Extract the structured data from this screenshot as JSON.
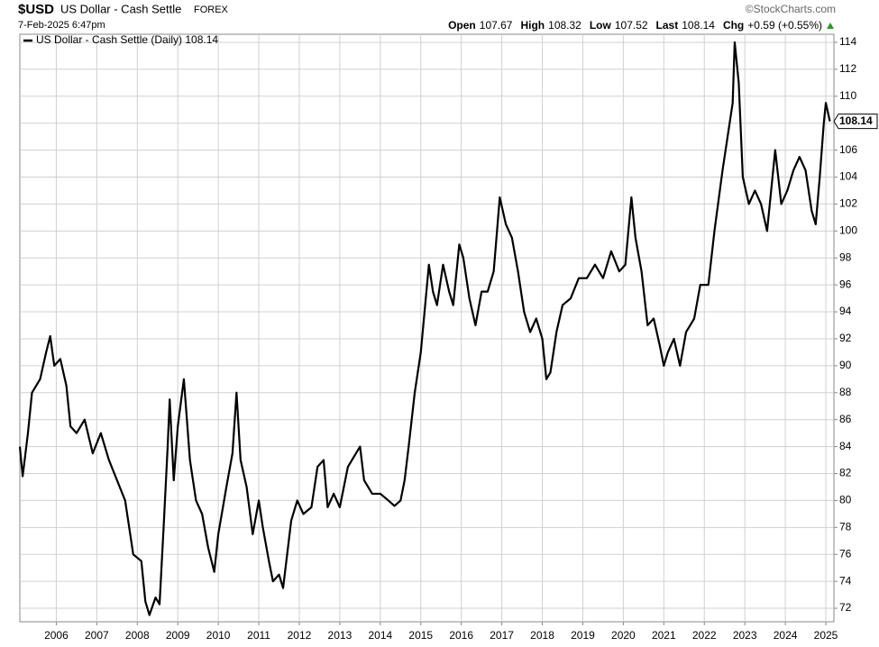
{
  "chart_data": {
    "type": "line",
    "title": "$USD",
    "subtitle": "US Dollar - Cash Settle",
    "exchange": "FOREX",
    "date": "7-Feb-2025 6:47pm",
    "source": "©StockCharts.com",
    "quote": [
      {
        "label": "Open",
        "value": 107.67
      },
      {
        "label": "High",
        "value": 108.32
      },
      {
        "label": "Low",
        "value": 107.52
      },
      {
        "label": "Last",
        "value": 108.14
      },
      {
        "label": "Chg",
        "value": "+0.59 (+0.55%)"
      }
    ],
    "grid": true,
    "legend": "top-left",
    "xlim": [
      2005.1,
      2025.2
    ],
    "xticks": [
      2006,
      2007,
      2008,
      2009,
      2010,
      2011,
      2012,
      2013,
      2014,
      2015,
      2016,
      2017,
      2018,
      2019,
      2020,
      2021,
      2022,
      2023,
      2024,
      2025
    ],
    "ylim": [
      71,
      114.6
    ],
    "yticks": [
      72,
      74,
      76,
      78,
      80,
      82,
      84,
      86,
      88,
      90,
      92,
      94,
      96,
      98,
      100,
      102,
      104,
      106,
      108,
      110,
      112,
      114
    ],
    "series": [
      {
        "name": "US Dollar - Cash Settle (Daily) 108.14",
        "color": "#000000",
        "x": [
          2005.1,
          2005.17,
          2005.3,
          2005.4,
          2005.6,
          2005.75,
          2005.85,
          2005.95,
          2006.1,
          2006.25,
          2006.35,
          2006.5,
          2006.7,
          2006.9,
          2007.1,
          2007.3,
          2007.5,
          2007.7,
          2007.9,
          2008.1,
          2008.2,
          2008.3,
          2008.45,
          2008.55,
          2008.65,
          2008.75,
          2008.8,
          2008.9,
          2009.0,
          2009.15,
          2009.3,
          2009.45,
          2009.6,
          2009.75,
          2009.9,
          2010.0,
          2010.2,
          2010.35,
          2010.45,
          2010.55,
          2010.7,
          2010.85,
          2011.0,
          2011.1,
          2011.25,
          2011.35,
          2011.5,
          2011.6,
          2011.7,
          2011.8,
          2011.95,
          2012.1,
          2012.3,
          2012.45,
          2012.6,
          2012.7,
          2012.85,
          2013.0,
          2013.2,
          2013.4,
          2013.5,
          2013.6,
          2013.8,
          2014.0,
          2014.2,
          2014.35,
          2014.5,
          2014.6,
          2014.7,
          2014.85,
          2015.0,
          2015.2,
          2015.3,
          2015.4,
          2015.55,
          2015.7,
          2015.8,
          2015.95,
          2016.05,
          2016.2,
          2016.35,
          2016.5,
          2016.65,
          2016.8,
          2016.95,
          2017.1,
          2017.25,
          2017.4,
          2017.55,
          2017.7,
          2017.85,
          2018.0,
          2018.1,
          2018.2,
          2018.35,
          2018.5,
          2018.7,
          2018.9,
          2019.1,
          2019.3,
          2019.5,
          2019.7,
          2019.9,
          2020.05,
          2020.2,
          2020.3,
          2020.45,
          2020.6,
          2020.75,
          2020.9,
          2021.0,
          2021.1,
          2021.25,
          2021.4,
          2021.55,
          2021.75,
          2021.9,
          2022.1,
          2022.25,
          2022.45,
          2022.55,
          2022.7,
          2022.75,
          2022.85,
          2022.95,
          2023.1,
          2023.25,
          2023.4,
          2023.55,
          2023.75,
          2023.9,
          2024.05,
          2024.2,
          2024.35,
          2024.5,
          2024.65,
          2024.75,
          2024.85,
          2024.95,
          2025.0,
          2025.1
        ],
        "values": [
          84,
          81.8,
          85,
          88,
          89,
          91,
          92.2,
          90,
          90.5,
          88.5,
          85.5,
          85,
          86,
          83.5,
          85,
          83,
          81.5,
          80,
          76,
          75.5,
          72.5,
          71.5,
          72.8,
          72.3,
          78,
          84,
          87.5,
          81.5,
          85.5,
          89,
          83,
          80,
          79,
          76.5,
          74.7,
          77.5,
          81,
          83.5,
          88,
          83,
          81,
          77.5,
          80,
          78,
          75.5,
          74,
          74.5,
          73.5,
          76,
          78.5,
          80,
          79,
          79.5,
          82.5,
          83,
          79.5,
          80.5,
          79.5,
          82.5,
          83.5,
          84,
          81.5,
          80.5,
          80.5,
          80,
          79.6,
          80,
          81.5,
          84,
          88,
          91,
          97.5,
          95.5,
          94.5,
          97.5,
          95.5,
          94.5,
          99,
          98,
          95,
          93,
          95.5,
          95.5,
          97,
          102.5,
          100.5,
          99.5,
          97,
          94,
          92.5,
          93.5,
          92,
          89,
          89.5,
          92.5,
          94.5,
          95,
          96.5,
          96.5,
          97.5,
          96.5,
          98.5,
          97,
          97.5,
          102.5,
          99.5,
          97,
          93,
          93.5,
          91.5,
          90,
          91,
          92,
          90,
          92.5,
          93.5,
          96,
          96,
          100,
          104.5,
          106.5,
          109.5,
          114,
          111,
          104,
          102,
          103,
          102,
          100,
          106,
          102,
          103,
          104.5,
          105.5,
          104.5,
          101.5,
          100.5,
          104,
          108,
          109.5,
          108.14
        ]
      }
    ]
  }
}
